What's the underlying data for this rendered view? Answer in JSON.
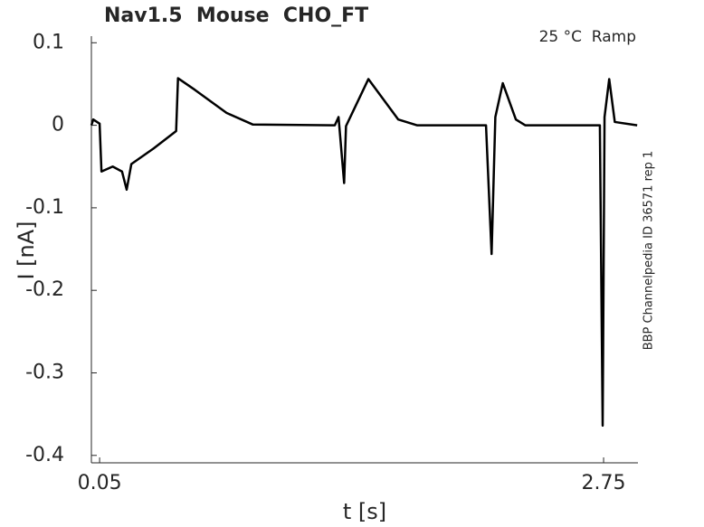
{
  "chart_data": {
    "type": "line",
    "title": "Nav1.5  Mouse  CHO_FT",
    "annotation": "25 °C  Ramp",
    "side_note": "BBP Channelpedia ID 36571 rep 1",
    "x_label": "t [s]",
    "y_label": "I [nA]",
    "xlim": [
      0.006,
      2.934
    ],
    "ylim": [
      -0.409,
      0.108
    ],
    "xticks": [
      0.05,
      2.75
    ],
    "yticks": [
      0.1,
      0,
      -0.1,
      -0.2,
      -0.3,
      -0.4
    ],
    "series": [
      {
        "color": "#000000",
        "x": [
          0.006,
          0.016,
          0.05,
          0.06,
          0.12,
          0.17,
          0.195,
          0.22,
          0.34,
          0.46,
          0.47,
          0.56,
          0.73,
          0.87,
          1.31,
          1.33,
          1.36,
          1.37,
          1.49,
          1.65,
          1.75,
          2.12,
          2.15,
          2.17,
          2.21,
          2.28,
          2.33,
          2.73,
          2.745,
          2.755,
          2.78,
          2.81,
          2.93
        ],
        "values": [
          0,
          0.007,
          0.002,
          -0.056,
          -0.05,
          -0.056,
          -0.078,
          -0.047,
          -0.028,
          -0.007,
          0.057,
          0.043,
          0.015,
          0.001,
          0,
          0.01,
          -0.07,
          -0.001,
          0.056,
          0.007,
          0,
          0,
          -0.156,
          0.01,
          0.051,
          0.007,
          0,
          0,
          -0.364,
          0.01,
          0.056,
          0.004,
          0
        ]
      }
    ]
  }
}
